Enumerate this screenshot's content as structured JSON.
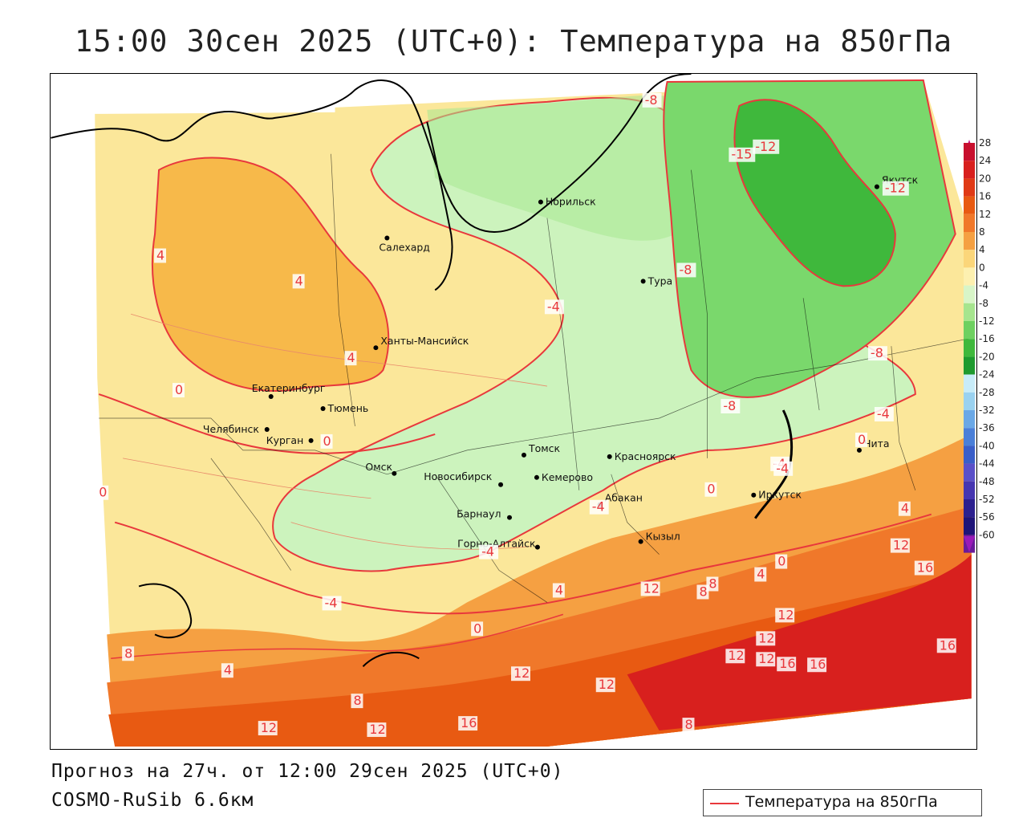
{
  "title": "15:00 30сен 2025 (UTC+0): Температура на 850гПа",
  "footer": {
    "forecast": "Прогноз на 27ч. от 12:00 29сен 2025 (UTC+0)",
    "model": "COSMO-RuSib 6.6км"
  },
  "legend": {
    "label": "Температура на 850гПа",
    "line_color": "#e8383c"
  },
  "colorbar": {
    "ticks": [
      "28",
      "24",
      "20",
      "16",
      "12",
      "8",
      "4",
      "0",
      "-4",
      "-8",
      "-12",
      "-16",
      "-20",
      "-24",
      "-28",
      "-32",
      "-36",
      "-40",
      "-44",
      "-48",
      "-52",
      "-56",
      "-60"
    ],
    "colors": [
      "#c8102e",
      "#d8201e",
      "#e03a16",
      "#e85a12",
      "#f0782a",
      "#f5a042",
      "#fbd67a",
      "#fdf0b0",
      "#d8f5c8",
      "#a6e58e",
      "#6ed060",
      "#3fb83c",
      "#1e9a2e",
      "#c8ecf8",
      "#9ad2f0",
      "#6aa8e6",
      "#4a7fd8",
      "#3a5ec8",
      "#5a50c8",
      "#4636b0",
      "#2c208e",
      "#1e1478",
      "#6a1a9a"
    ]
  },
  "cities": [
    {
      "name": "Норильск"
    },
    {
      "name": "Якутск"
    },
    {
      "name": "Салехард"
    },
    {
      "name": "Тура"
    },
    {
      "name": "Ханты-Мансийск"
    },
    {
      "name": "Екатеринбург"
    },
    {
      "name": "Тюмень"
    },
    {
      "name": "Челябинск"
    },
    {
      "name": "Курган"
    },
    {
      "name": "Томск"
    },
    {
      "name": "Красноярск"
    },
    {
      "name": "Чита"
    },
    {
      "name": "Омск"
    },
    {
      "name": "Новосибирск"
    },
    {
      "name": "Кемерово"
    },
    {
      "name": "Абакан"
    },
    {
      "name": "Иркутск"
    },
    {
      "name": "Барнаул"
    },
    {
      "name": "Кызыл"
    },
    {
      "name": "Горно-Алтайск"
    }
  ],
  "isotherm_labels": [
    "-8",
    "-15",
    "-12",
    "-12",
    "-8",
    "4",
    "4",
    "-4",
    "4",
    "-8",
    "-8",
    "0",
    "0",
    "0",
    "-4",
    "0",
    "-4",
    "-4",
    "-4",
    "0",
    "4",
    "-4",
    "12",
    "16",
    "0",
    "4",
    "12",
    "8",
    "4",
    "-4",
    "0",
    "8",
    "4",
    "8",
    "12",
    "8",
    "12",
    "12",
    "12",
    "16",
    "16",
    "16",
    "12",
    "8",
    "12",
    "12",
    "12",
    "16"
  ]
}
